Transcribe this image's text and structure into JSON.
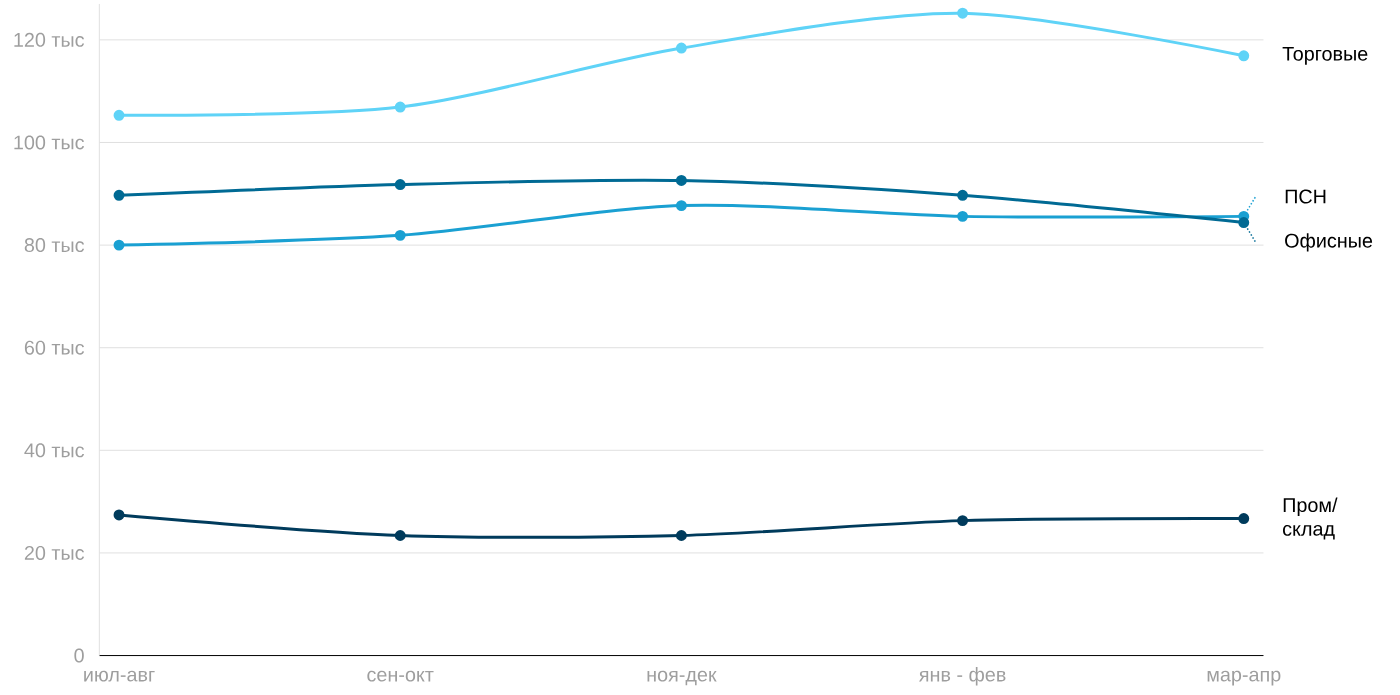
{
  "chart_data": {
    "type": "line",
    "categories": [
      "июл-авг",
      "сен-окт",
      "ноя-дек",
      "янв - фев",
      "мар-апр"
    ],
    "series": [
      {
        "name": "Торговые",
        "color": "#5fd3f7",
        "values": [
          105.3,
          106.9,
          118.4,
          125.2,
          116.9
        ]
      },
      {
        "name": "ПСН",
        "color": "#1aa0d2",
        "values": [
          80.0,
          81.9,
          87.7,
          85.6,
          85.6
        ]
      },
      {
        "name": "Офисные",
        "color": "#006a94",
        "values": [
          89.7,
          91.8,
          92.6,
          89.7,
          84.4
        ]
      },
      {
        "name": "Пром/ склад",
        "color": "#003b5c",
        "values": [
          27.4,
          23.4,
          23.4,
          26.3,
          26.7
        ]
      }
    ],
    "ylim": [
      0,
      127
    ],
    "legend": "right",
    "yticks": [
      0,
      {
        "value": 20,
        "label": "20 тыс"
      },
      {
        "value": 40,
        "label": "40 тыс"
      },
      {
        "value": 60,
        "label": "60 тыс"
      },
      {
        "value": 80,
        "label": "80 тыс"
      },
      {
        "value": 100,
        "label": "100 тыс"
      },
      {
        "value": 120,
        "label": "120 тыс"
      }
    ],
    "grid": "y",
    "marker": "circle",
    "line_style": "solid"
  }
}
